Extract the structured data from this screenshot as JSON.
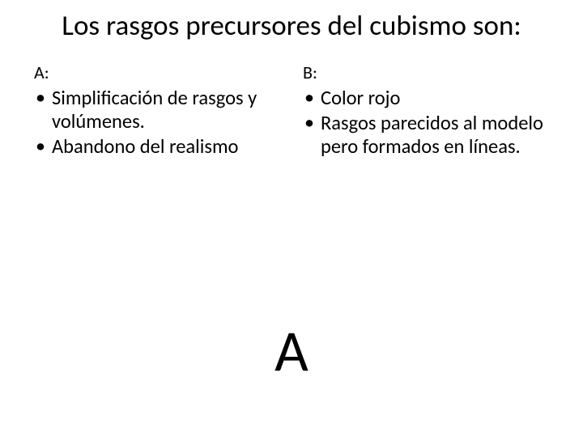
{
  "title": "Los rasgos precursores del cubismo son:",
  "columns": {
    "left": {
      "label": "A:",
      "items": [
        "Simplificación de rasgos y volúmenes.",
        "Abandono del realismo"
      ]
    },
    "right": {
      "label": "B:",
      "items": [
        "Color rojo",
        "Rasgos parecidos al modelo  pero formados en líneas."
      ]
    }
  },
  "answer": "A",
  "style": {
    "background_color": "#ffffff",
    "text_color": "#000000",
    "title_fontsize": 35,
    "label_fontsize": 22,
    "item_fontsize": 24.5,
    "answer_fontsize": 72
  }
}
